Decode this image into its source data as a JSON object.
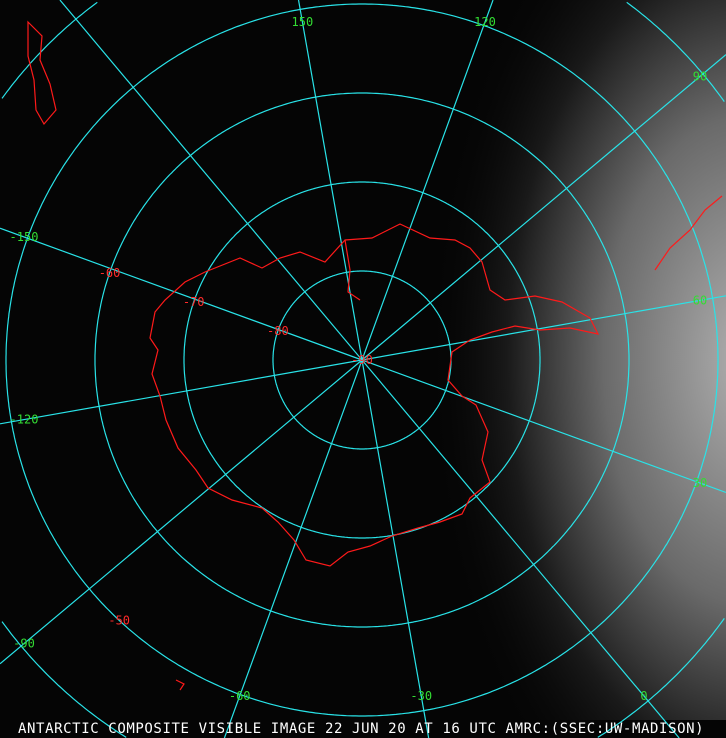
{
  "caption": "ANTARCTIC COMPOSITE VISIBLE IMAGE 22 JUN 20 AT 16 UTC AMRC:(SSEC:UW-MADISON)",
  "colors": {
    "grid": "#29e3e8",
    "coast": "#ff1a1a",
    "lon_label": "#33dd33",
    "lat_label": "#ff2a2a",
    "background": "#000000",
    "clouds": "#9a9a9a"
  },
  "projection": "polar-stereographic-south",
  "latitudes": [
    {
      "value": -90,
      "label": "-90"
    },
    {
      "value": -80,
      "label": "-80"
    },
    {
      "value": -70,
      "label": "-70"
    },
    {
      "value": -60,
      "label": "-60"
    },
    {
      "value": -50,
      "label": "-50"
    }
  ],
  "longitudes": [
    {
      "value": 150,
      "label": "150"
    },
    {
      "value": 120,
      "label": "120"
    },
    {
      "value": 90,
      "label": "90"
    },
    {
      "value": 60,
      "label": "60"
    },
    {
      "value": 30,
      "label": "30"
    },
    {
      "value": 0,
      "label": "0"
    },
    {
      "value": -30,
      "label": "-30"
    },
    {
      "value": -60,
      "label": "-60"
    },
    {
      "value": -90,
      "label": "-90"
    },
    {
      "value": -120,
      "label": "-120"
    },
    {
      "value": -150,
      "label": "-150"
    }
  ]
}
